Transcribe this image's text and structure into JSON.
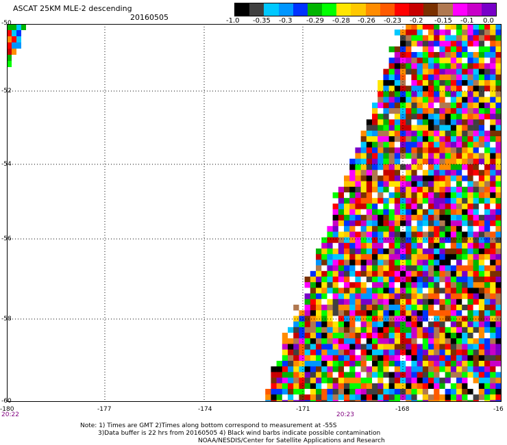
{
  "header": {
    "title": "ASCAT 25KM MLE-2 descending",
    "date": "20160505"
  },
  "colorbar": {
    "colors": [
      "#000000",
      "#404040",
      "#00c8ff",
      "#0096ff",
      "#0032ff",
      "#00b400",
      "#00ff00",
      "#ffe600",
      "#ffc800",
      "#ff8c00",
      "#ff5a00",
      "#ff0000",
      "#c80000",
      "#7a3000",
      "#b07850",
      "#ff00ff",
      "#c800c8",
      "#7800c8"
    ],
    "labels": [
      "-1.0",
      "-0.35",
      "-0.3",
      "-0.29",
      "-0.28",
      "-0.26",
      "-0.23",
      "-0.2",
      "-0.15",
      "-0.1",
      "0.0"
    ]
  },
  "axes": {
    "x_labels": [
      "-180",
      "-177",
      "-174",
      "-171",
      "-168",
      "-16"
    ],
    "y_labels": [
      "-50",
      "-52",
      "-54",
      "-56",
      "-58",
      "-60"
    ],
    "x_range": [
      -180,
      -165
    ],
    "y_range": [
      -60,
      -50
    ]
  },
  "times": [
    "20:22",
    "20:23"
  ],
  "notes": {
    "line1": "Note: 1) Times are GMT 2)Times along bottom correspond to measurement at -55S",
    "line2": "3)Data buffer is 22 hrs from 20160505 4) Black wind barbs indicate possible contamination",
    "line3": "NOAA/NESDIS/Center for Satellite Applications and Research"
  },
  "data_palette": [
    "#000000",
    "#404040",
    "#00c8ff",
    "#0096ff",
    "#0032ff",
    "#00b400",
    "#00ff00",
    "#ffe600",
    "#ffc800",
    "#ff8c00",
    "#ff5a00",
    "#ff0000",
    "#c80000",
    "#7a3000",
    "#b07850",
    "#ff00ff",
    "#c800c8",
    "#7800c8",
    "#ffffff"
  ]
}
